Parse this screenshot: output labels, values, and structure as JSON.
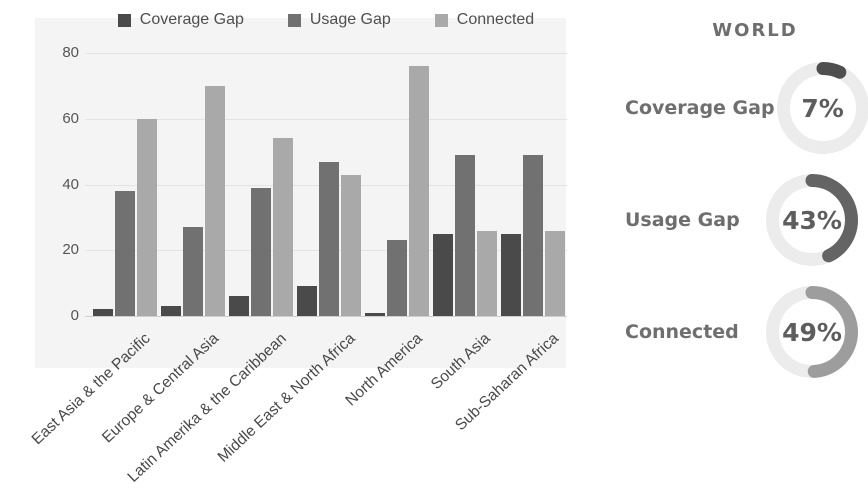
{
  "chart_data": {
    "type": "bar",
    "title": "",
    "xlabel": "",
    "ylabel": "",
    "categories": [
      "East Asia & the Pacific",
      "Europe & Central Asia",
      "Latin Amerika & the Caribbean",
      "Middle East & North Africa",
      "North America",
      "South Asia",
      "Sub-Saharan Africa"
    ],
    "series": [
      {
        "name": "Coverage Gap",
        "color": "#4a4a4a",
        "values": [
          2,
          3,
          6,
          9,
          1,
          25,
          25
        ]
      },
      {
        "name": "Usage Gap",
        "color": "#717171",
        "values": [
          38,
          27,
          39,
          47,
          23,
          49,
          49
        ]
      },
      {
        "name": "Connected",
        "color": "#a9a9a9",
        "values": [
          60,
          70,
          54,
          43,
          76,
          26,
          26
        ]
      }
    ],
    "ylim": [
      0,
      80
    ],
    "yticks": [
      "0",
      "20",
      "40",
      "60",
      "80"
    ],
    "grid": true,
    "legend_position": "top",
    "plot_background": "#f4f4f4"
  },
  "world": {
    "title": "WORLD",
    "track_color": "#ececec",
    "items": [
      {
        "label": "Coverage Gap",
        "pct": "7%",
        "value": 7,
        "arc_color": "#4f4f4f"
      },
      {
        "label": "Usage Gap",
        "pct": "43%",
        "value": 43,
        "arc_color": "#646464"
      },
      {
        "label": "Connected",
        "pct": "49%",
        "value": 49,
        "arc_color": "#9d9d9d"
      }
    ]
  }
}
